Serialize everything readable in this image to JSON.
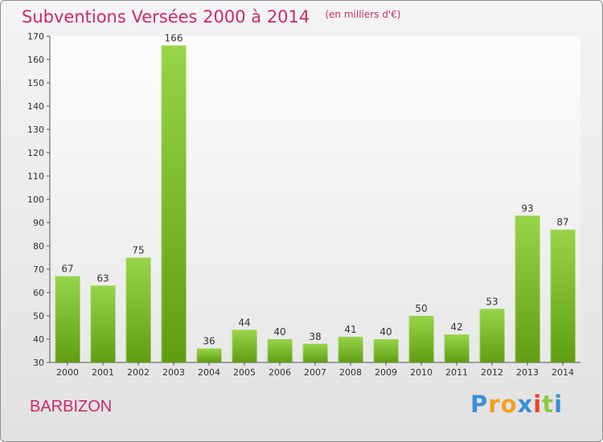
{
  "title": "Subventions Versées 2000 à 2014",
  "subtitle": "(en milliers d'€)",
  "commune": "BARBIZON",
  "logo": {
    "text": "Proxiti",
    "letters": [
      {
        "char": "P",
        "color": "#3a8fd8"
      },
      {
        "char": "r",
        "color": "#f0a020"
      },
      {
        "char": "o",
        "color": "#f0a020"
      },
      {
        "char": "x",
        "color": "#3a8fd8"
      },
      {
        "char": "i",
        "color": "#e8442c"
      },
      {
        "char": "t",
        "color": "#8cc83c"
      },
      {
        "char": "i",
        "color": "#3a8fd8"
      }
    ]
  },
  "colors": {
    "accent": "#c72a6b",
    "bar_top": "#98d44a",
    "bar_bottom": "#5f9e12",
    "plot_bg_top": "#fdfdfd",
    "plot_bg_bottom": "#e8e8e8"
  },
  "chart_data": {
    "type": "bar",
    "categories": [
      "2000",
      "2001",
      "2002",
      "2003",
      "2004",
      "2005",
      "2006",
      "2007",
      "2008",
      "2009",
      "2010",
      "2011",
      "2012",
      "2013",
      "2014"
    ],
    "values": [
      67,
      63,
      75,
      166,
      36,
      44,
      40,
      38,
      41,
      40,
      50,
      42,
      53,
      93,
      87
    ],
    "ylim": [
      30,
      170
    ],
    "yticks": [
      30,
      40,
      50,
      60,
      70,
      80,
      90,
      100,
      110,
      120,
      130,
      140,
      150,
      160,
      170
    ],
    "xlabel": "",
    "ylabel": "",
    "grid": false,
    "data_labels": true
  }
}
